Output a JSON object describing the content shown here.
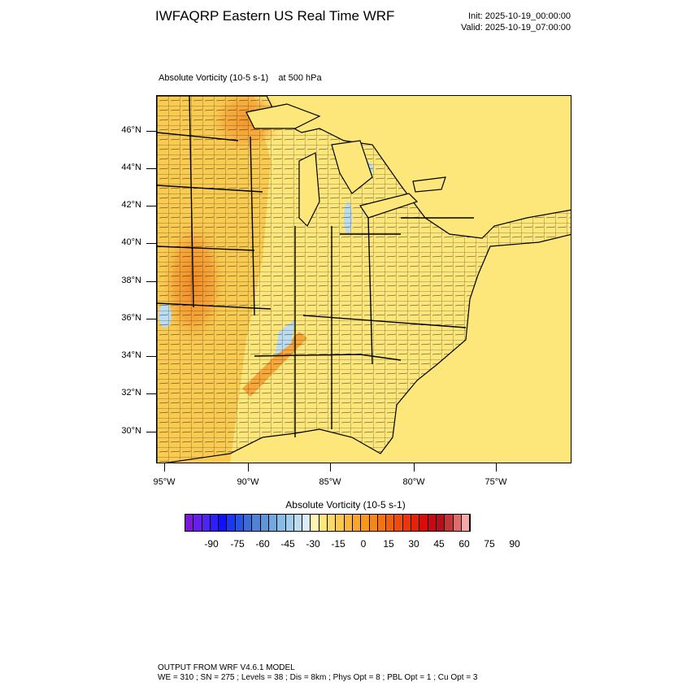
{
  "header": {
    "title": "IWFAQRP Eastern US Real Time WRF",
    "init": "Init: 2025-10-19_00:00:00",
    "valid": "Valid: 2025-10-19_07:00:00"
  },
  "field": {
    "name": "Absolute Vorticity   (10-5 s-1)",
    "level": "at   500 hPa"
  },
  "map": {
    "lat_labels": [
      "46°N",
      "44°N",
      "42°N",
      "40°N",
      "38°N",
      "36°N",
      "34°N",
      "32°N",
      "30°N"
    ],
    "lon_labels": [
      "95°W",
      "90°W",
      "85°W",
      "80°W",
      "75°W"
    ],
    "colors": {
      "background": "#fde77a",
      "land_warm": "#f9c54a",
      "max": "#f08a24",
      "negative": "#bcdcf0",
      "boundary": "#000000"
    }
  },
  "colorbar": {
    "title": "Absolute Vorticity  (10-5 s-1)",
    "labels": [
      "-90",
      "-75",
      "-60",
      "-45",
      "-30",
      "-15",
      "0",
      "15",
      "30",
      "45",
      "60",
      "75",
      "90"
    ],
    "colors": [
      "#7a18d6",
      "#6420e8",
      "#4e25f0",
      "#2e1ef8",
      "#1010ff",
      "#1a38f0",
      "#2a52e2",
      "#3d6cd8",
      "#5082d6",
      "#5e96da",
      "#70a8e0",
      "#86bce6",
      "#a0cdeb",
      "#bcdcf0",
      "#daedf7",
      "#fdf5b3",
      "#fde77a",
      "#fcd76a",
      "#fbc84e",
      "#f9b73a",
      "#f8a72c",
      "#f6971f",
      "#f4861a",
      "#f27214",
      "#f05e10",
      "#ee4b0d",
      "#ec350a",
      "#e52108",
      "#d80d0a",
      "#c40a14",
      "#b3101c",
      "#c2363a",
      "#e06b6b",
      "#f5a8a8"
    ]
  },
  "footer": {
    "line1": "OUTPUT FROM WRF V4.6.1 MODEL",
    "line2": "WE = 310 ; SN = 275 ; Levels = 38 ; Dis = 8km ; Phys Opt = 8 ; PBL Opt = 1 ; Cu Opt = 3"
  }
}
